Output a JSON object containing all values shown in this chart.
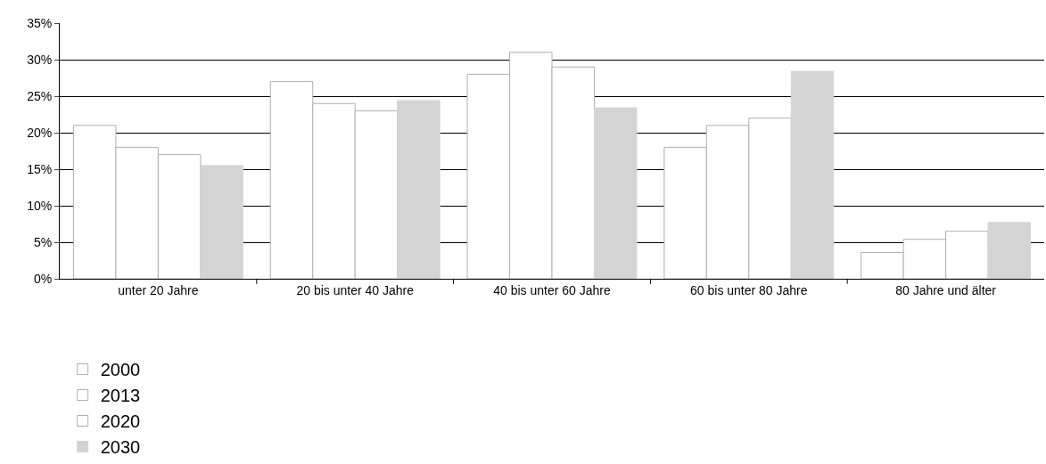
{
  "chart_data": {
    "type": "bar",
    "categories": [
      "unter 20 Jahre",
      "20 bis unter 40 Jahre",
      "40 bis unter 60 Jahre",
      "60 bis unter 80 Jahre",
      "80 Jahre und älter"
    ],
    "series": [
      {
        "name": "2000",
        "color": "#ffffff",
        "values": [
          21,
          27,
          28,
          18,
          3.6
        ]
      },
      {
        "name": "2013",
        "color": "#ffffff",
        "values": [
          18,
          24,
          31,
          21,
          5.4
        ]
      },
      {
        "name": "2020",
        "color": "#ffffff",
        "values": [
          17,
          23,
          29,
          22,
          6.5
        ]
      },
      {
        "name": "2030",
        "color": "#d4d4d4",
        "values": [
          15.5,
          24.4,
          23.4,
          28.4,
          7.7
        ]
      }
    ],
    "ylim": [
      0,
      35
    ],
    "yticks": [
      {
        "value": 0,
        "label": "0%"
      },
      {
        "value": 5,
        "label": "5%"
      },
      {
        "value": 10,
        "label": "10%"
      },
      {
        "value": 15,
        "label": "15%"
      },
      {
        "value": 20,
        "label": "20%"
      },
      {
        "value": 25,
        "label": "25%"
      },
      {
        "value": 30,
        "label": "30%"
      },
      {
        "value": 35,
        "label": "35%"
      }
    ],
    "grid": "y",
    "legend": "bottom"
  }
}
